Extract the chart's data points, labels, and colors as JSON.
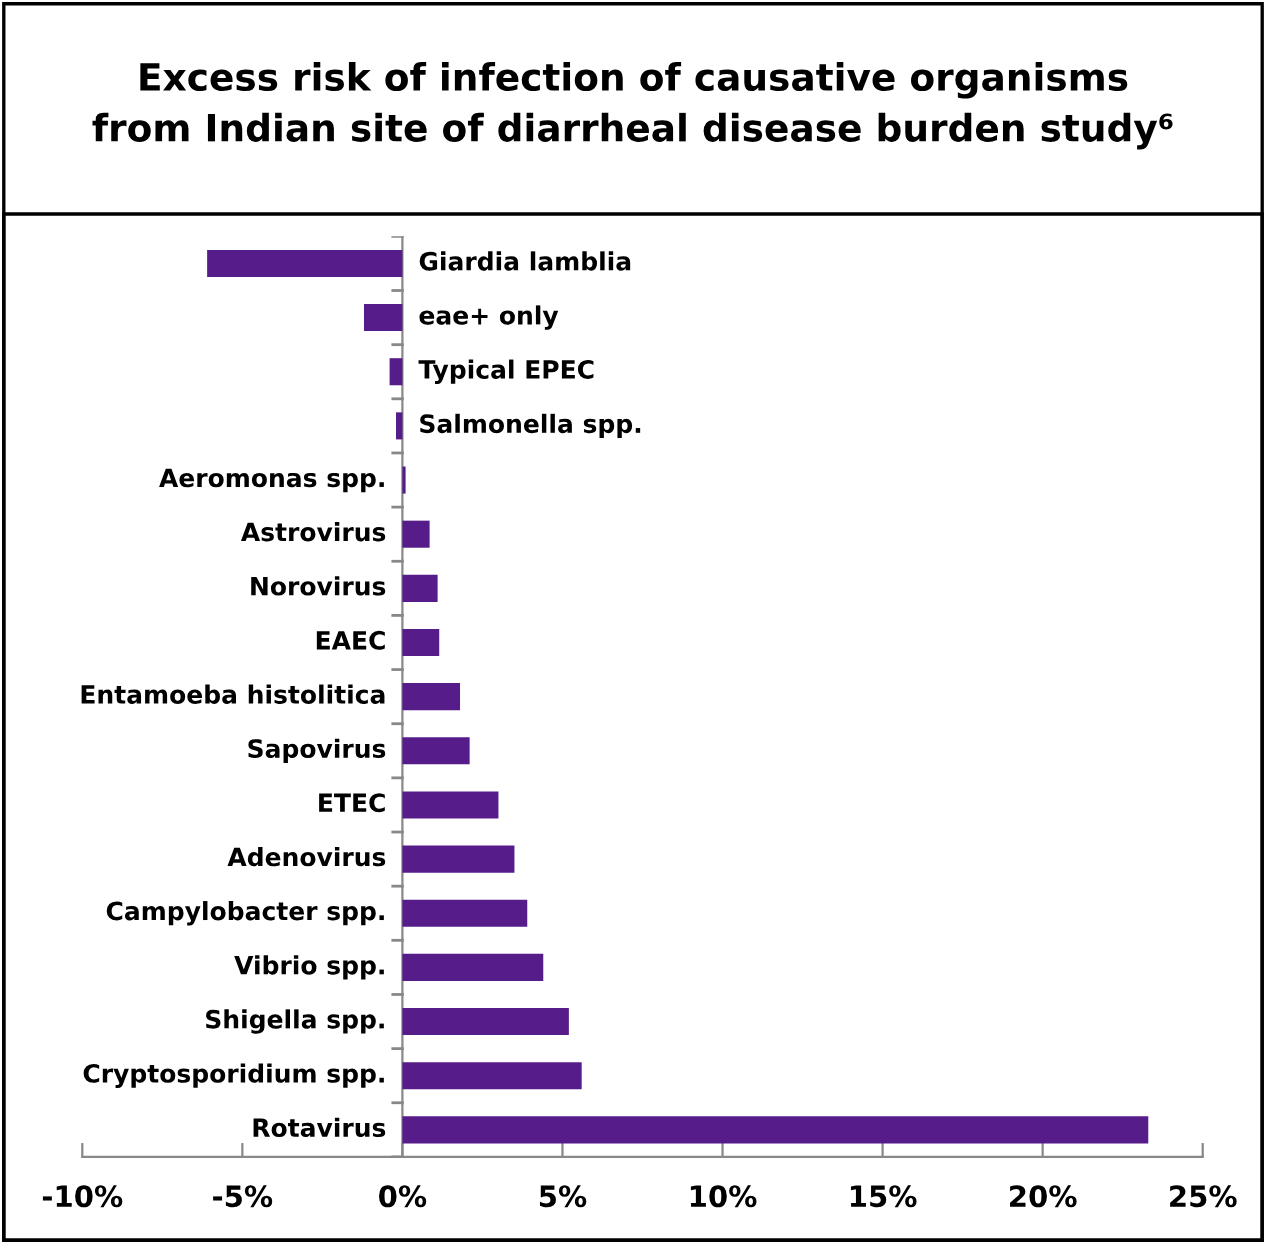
{
  "chart_data": {
    "type": "bar",
    "orientation": "horizontal",
    "title": "Excess risk of infection of causative organisms\nfrom Indian site of diarrheal disease burden study⁶",
    "categories": [
      "Giardia lamblia",
      "eae+ only",
      "Typical EPEC",
      "Salmonella spp.",
      "Aeromonas spp.",
      "Astrovirus",
      "Norovirus",
      "EAEC",
      "Entamoeba histolitica",
      "Sapovirus",
      "ETEC",
      "Adenovirus",
      "Campylobacter spp.",
      "Vibrio spp.",
      "Shigella spp.",
      "Cryptosporidium spp.",
      "Rotavirus"
    ],
    "values": [
      -6.1,
      -1.2,
      -0.4,
      -0.2,
      0.1,
      0.85,
      1.1,
      1.15,
      1.8,
      2.1,
      3.0,
      3.5,
      3.9,
      4.4,
      5.2,
      5.6,
      23.3
    ],
    "color": "#561c8a",
    "xlim": [
      -10,
      25
    ],
    "xticks": [
      {
        "value": -10,
        "label": "-10%"
      },
      {
        "value": -5,
        "label": "-5%"
      },
      {
        "value": 0,
        "label": "0%"
      },
      {
        "value": 5,
        "label": "5%"
      },
      {
        "value": 10,
        "label": "10%"
      },
      {
        "value": 15,
        "label": "15%"
      },
      {
        "value": 20,
        "label": "20%"
      },
      {
        "value": 25,
        "label": "25%"
      }
    ],
    "grid": false,
    "legend": false
  }
}
